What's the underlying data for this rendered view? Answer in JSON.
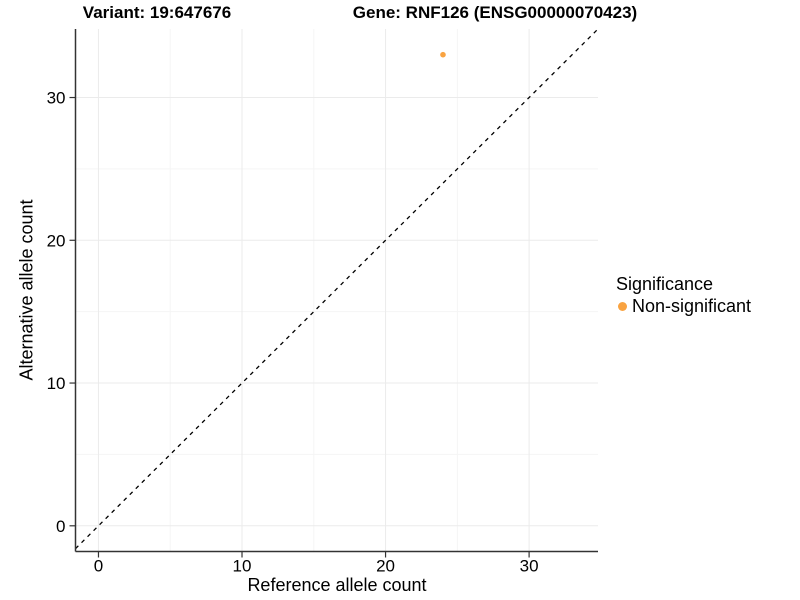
{
  "page": {
    "background": "#FFFFFF"
  },
  "titles": {
    "variant": "Variant: 19:647676",
    "gene": "Gene: RNF126 (ENSG00000070423)"
  },
  "axes": {
    "x_label": "Reference allele count",
    "y_label": "Alternative allele count"
  },
  "legend": {
    "title": "Significance",
    "items": [
      {
        "label": "Non-significant",
        "color": "#F9A341",
        "marker": "dot"
      }
    ]
  },
  "chart_data": {
    "type": "scatter",
    "title_left": "Variant: 19:647676",
    "title_right": "Gene: RNF126 (ENSG00000070423)",
    "xlabel": "Reference allele count",
    "ylabel": "Alternative allele count",
    "xlim": [
      -1.6,
      34.8
    ],
    "ylim": [
      -1.8,
      34.8
    ],
    "x_ticks": [
      0,
      10,
      20,
      30
    ],
    "y_ticks": [
      0,
      10,
      20,
      30
    ],
    "x_minor_gridlines": [
      5,
      15,
      25
    ],
    "y_minor_gridlines": [
      5,
      15,
      25
    ],
    "grid": "on",
    "legend_position": "right",
    "legend_title": "Significance",
    "series": [
      {
        "name": "Non-significant",
        "color": "#F9A341",
        "marker_radius": 2.8,
        "points": [
          {
            "x": 24,
            "y": 33
          }
        ]
      }
    ],
    "reference_line": {
      "type": "identity",
      "equation": "y = x",
      "style": "dashed",
      "color": "#000000"
    },
    "colors": {
      "grid_major": "#EBEBEB",
      "grid_minor": "#F5F5F5",
      "axis": "#333333",
      "text": "#000000"
    }
  }
}
